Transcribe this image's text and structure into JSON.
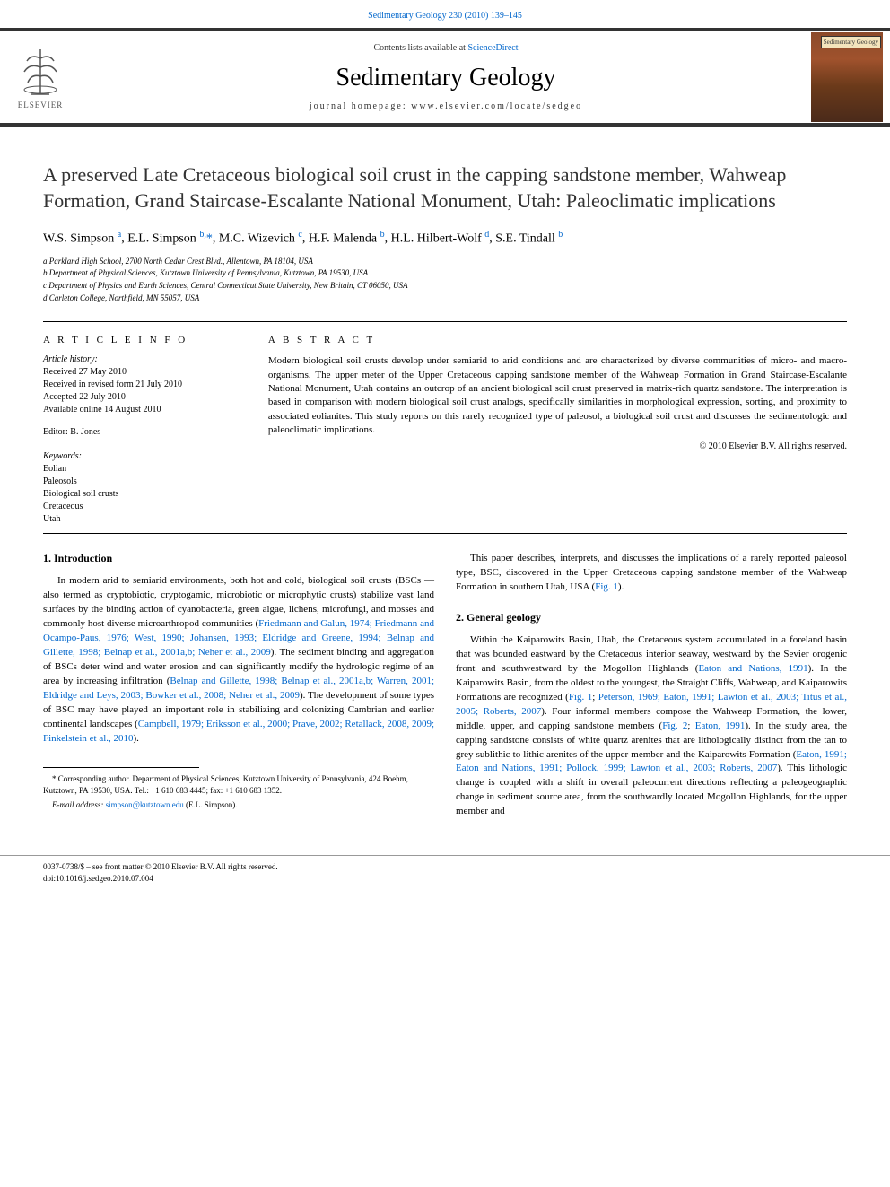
{
  "journal_ref_top": "Sedimentary Geology 230 (2010) 139–145",
  "header": {
    "contents_prefix": "Contents lists available at ",
    "contents_link": "ScienceDirect",
    "journal_name": "Sedimentary Geology",
    "homepage_prefix": "journal homepage: ",
    "homepage_url": "www.elsevier.com/locate/sedgeo",
    "elsevier_label": "ELSEVIER",
    "cover_label": "Sedimentary Geology"
  },
  "article": {
    "title": "A preserved Late Cretaceous biological soil crust in the capping sandstone member, Wahweap Formation, Grand Staircase-Escalante National Monument, Utah: Paleoclimatic implications",
    "authors_html": "W.S. Simpson <sup>a</sup>, E.L. Simpson <sup>b,</sup><span class='author-star'>*</span>, M.C. Wizevich <sup>c</sup>, H.F. Malenda <sup>b</sup>, H.L. Hilbert-Wolf <sup>d</sup>, S.E. Tindall <sup>b</sup>",
    "affiliations": [
      "a Parkland High School, 2700 North Cedar Crest Blvd., Allentown, PA 18104, USA",
      "b Department of Physical Sciences, Kutztown University of Pennsylvania, Kutztown, PA 19530, USA",
      "c Department of Physics and Earth Sciences, Central Connecticut State University, New Britain, CT 06050, USA",
      "d Carleton College, Northfield, MN 55057, USA"
    ]
  },
  "info": {
    "header": "A R T I C L E   I N F O",
    "history_label": "Article history:",
    "history": [
      "Received 27 May 2010",
      "Received in revised form 21 July 2010",
      "Accepted 22 July 2010",
      "Available online 14 August 2010"
    ],
    "editor": "Editor: B. Jones",
    "keywords_label": "Keywords:",
    "keywords": [
      "Eolian",
      "Paleosols",
      "Biological soil crusts",
      "Cretaceous",
      "Utah"
    ]
  },
  "abstract": {
    "header": "A B S T R A C T",
    "text": "Modern biological soil crusts develop under semiarid to arid conditions and are characterized by diverse communities of micro- and macro-organisms. The upper meter of the Upper Cretaceous capping sandstone member of the Wahweap Formation in Grand Staircase-Escalante National Monument, Utah contains an outcrop of an ancient biological soil crust preserved in matrix-rich quartz sandstone. The interpretation is based in comparison with modern biological soil crust analogs, specifically similarities in morphological expression, sorting, and proximity to associated eolianites. This study reports on this rarely recognized type of paleosol, a biological soil crust and discusses the sedimentologic and paleoclimatic implications.",
    "copyright": "© 2010 Elsevier B.V. All rights reserved."
  },
  "sections": {
    "intro_heading": "1. Introduction",
    "intro_p1_parts": [
      "In modern arid to semiarid environments, both hot and cold, biological soil crusts (BSCs — also termed as cryptobiotic, cryptogamic, microbiotic or microphytic crusts) stabilize vast land surfaces by the binding action of cyanobacteria, green algae, lichens, microfungi, and mosses and commonly host diverse microarthropod communities (",
      "Friedmann and Galun, 1974; Friedmann and Ocampo-Paus, 1976; West, 1990; Johansen, 1993; Eldridge and Greene, 1994; Belnap and Gillette, 1998; Belnap et al., 2001a,b; Neher et al., 2009",
      "). The sediment binding and aggregation of BSCs deter wind and water erosion and can significantly modify the hydrologic regime of an area by increasing infiltration (",
      "Belnap and Gillette, 1998; Belnap et al., 2001a,b; Warren, 2001; Eldridge and Leys, 2003; Bowker et al., 2008; Neher et al., 2009",
      "). The development of some types of BSC may have played an important role in stabilizing and colonizing Cambrian and earlier continental landscapes (",
      "Campbell, 1979; Eriksson et al., 2000; Prave, 2002; Retallack, 2008, 2009; Finkelstein et al., 2010",
      ")."
    ],
    "intro_p2_parts": [
      "This paper describes, interprets, and discusses the implications of a rarely reported paleosol type, BSC, discovered in the Upper Cretaceous capping sandstone member of the Wahweap Formation in southern Utah, USA (",
      "Fig. 1",
      ")."
    ],
    "geology_heading": "2. General geology",
    "geology_p1_parts": [
      "Within the Kaiparowits Basin, Utah, the Cretaceous system accumulated in a foreland basin that was bounded eastward by the Cretaceous interior seaway, westward by the Sevier orogenic front and southwestward by the Mogollon Highlands (",
      "Eaton and Nations, 1991",
      "). In the Kaiparowits Basin, from the oldest to the youngest, the Straight Cliffs, Wahweap, and Kaiparowits Formations are recognized (",
      "Fig. 1",
      "; ",
      "Peterson, 1969; Eaton, 1991; Lawton et al., 2003; Titus et al., 2005; Roberts, 2007",
      "). Four informal members compose the Wahweap Formation, the lower, middle, upper, and capping sandstone members (",
      "Fig. 2",
      "; ",
      "Eaton, 1991",
      "). In the study area, the capping sandstone consists of white quartz arenites that are lithologically distinct from the tan to grey sublithic to lithic arenites of the upper member and the Kaiparowits Formation (",
      "Eaton, 1991; Eaton and Nations, 1991; Pollock, 1999; Lawton et al., 2003; Roberts, 2007",
      "). This lithologic change is coupled with a shift in overall paleocurrent directions reflecting a paleogeographic change in sediment source area, from the southwardly located Mogollon Highlands, for the upper member and"
    ]
  },
  "footnote": {
    "corresponding": "* Corresponding author. Department of Physical Sciences, Kutztown University of Pennsylvania, 424 Boehm, Kutztown, PA 19530, USA. Tel.: +1 610 683 4445; fax: +1 610 683 1352.",
    "email_label": "E-mail address: ",
    "email": "simpson@kutztown.edu",
    "email_suffix": " (E.L. Simpson)."
  },
  "footer": {
    "line1": "0037-0738/$ – see front matter © 2010 Elsevier B.V. All rights reserved.",
    "line2": "doi:10.1016/j.sedgeo.2010.07.004"
  },
  "colors": {
    "link": "#0066cc",
    "text": "#000000",
    "bar": "#333333",
    "cover_bg": "#8b4a2a"
  }
}
